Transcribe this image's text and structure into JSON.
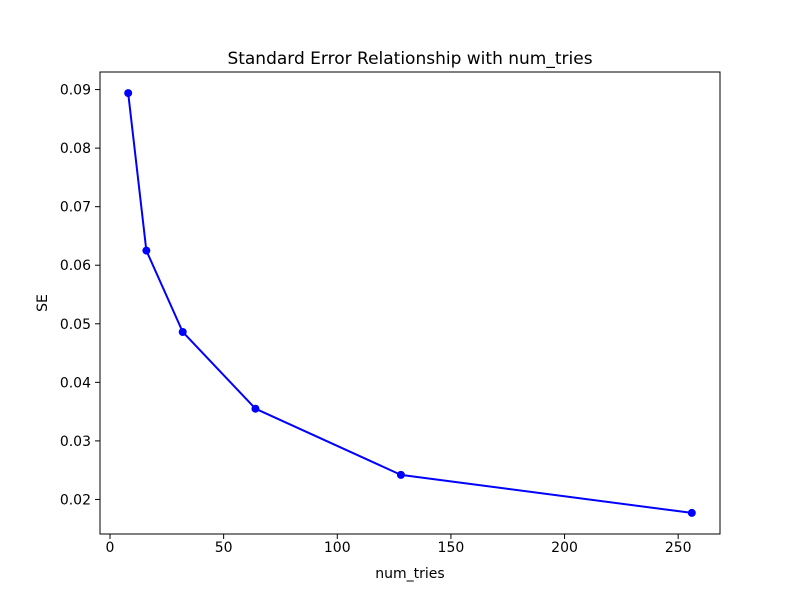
{
  "chart_data": {
    "type": "line",
    "title": "Standard Error Relationship with num_tries",
    "xlabel": "num_tries",
    "ylabel": "SE",
    "x": [
      8,
      16,
      32,
      64,
      128,
      256
    ],
    "y": [
      0.0894,
      0.0625,
      0.0486,
      0.0355,
      0.0242,
      0.0177
    ],
    "xticks": [
      0,
      50,
      100,
      150,
      200,
      250
    ],
    "yticks": [
      0.02,
      0.03,
      0.04,
      0.05,
      0.06,
      0.07,
      0.08,
      0.09
    ],
    "xlim": [
      -4.4,
      268.4
    ],
    "ylim": [
      0.0141,
      0.093
    ],
    "line_color": "#0000ff",
    "marker": "circle",
    "grid": false,
    "legend": "none",
    "background_color": "#ffffff",
    "spine_color": "#000000"
  }
}
